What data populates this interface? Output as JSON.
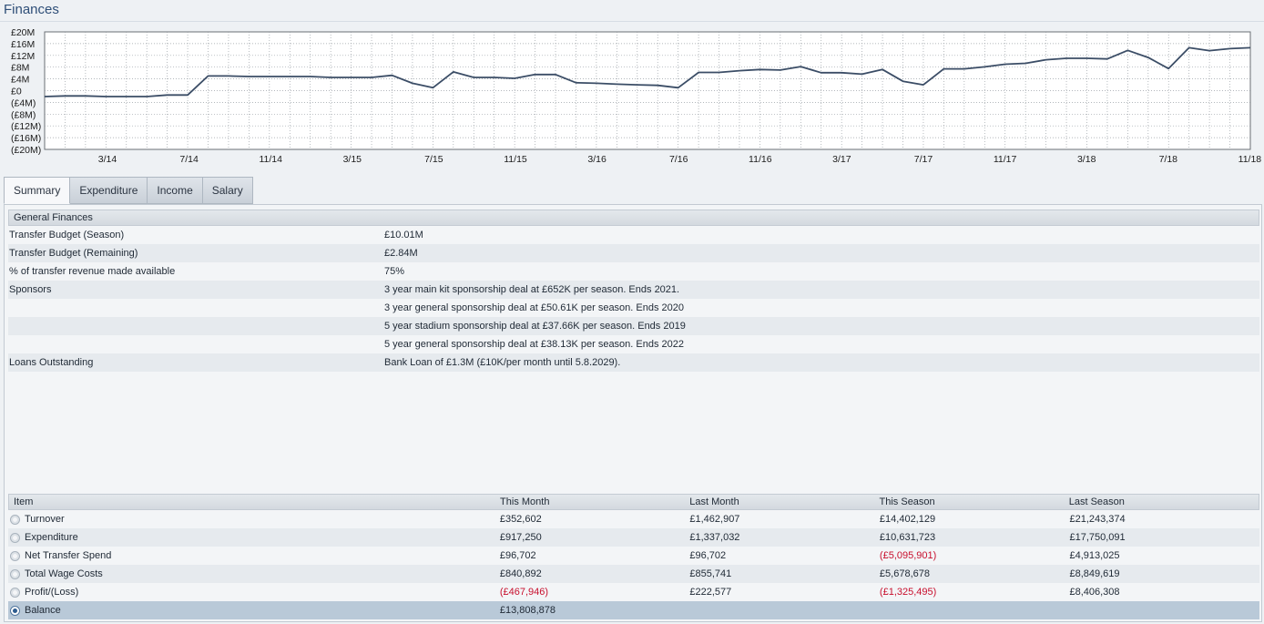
{
  "page": {
    "title": "Finances"
  },
  "chart_data": {
    "type": "line",
    "y_ticks": [
      "£20M",
      "£16M",
      "£12M",
      "£8M",
      "£4M",
      "£0",
      "(£4M)",
      "(£8M)",
      "(£12M)",
      "(£16M)",
      "(£20M)"
    ],
    "ylim": [
      -20,
      20
    ],
    "x_ticks": [
      "3/14",
      "7/14",
      "11/14",
      "3/15",
      "7/15",
      "11/15",
      "3/16",
      "7/16",
      "11/16",
      "3/17",
      "7/17",
      "11/17",
      "3/18",
      "7/18",
      "11/18"
    ],
    "grid": true,
    "series": [
      {
        "color": "#3b4d66",
        "values": [
          -2,
          -1.8,
          -1.8,
          -2,
          -2,
          -2,
          -1.5,
          -1.5,
          5,
          5,
          4.8,
          4.8,
          4.8,
          4.8,
          4.5,
          4.5,
          4.5,
          5.2,
          2.5,
          1,
          6.4,
          4.5,
          4.5,
          4.2,
          5.5,
          5.5,
          2.7,
          2.5,
          2.2,
          2,
          1.8,
          1,
          6.2,
          6.2,
          6.8,
          7.2,
          7,
          8.2,
          6.1,
          6.1,
          5.6,
          7.2,
          3.2,
          2,
          7.4,
          7.4,
          8.1,
          9,
          9.3,
          10.5,
          11,
          11,
          10.8,
          13.7,
          11.3,
          7.5,
          14.6,
          13.6,
          14.3,
          14.6
        ]
      }
    ]
  },
  "tabs": [
    {
      "label": "Summary",
      "active": true
    },
    {
      "label": "Expenditure",
      "active": false
    },
    {
      "label": "Income",
      "active": false
    },
    {
      "label": "Salary",
      "active": false
    }
  ],
  "general": {
    "header": "General Finances",
    "rows": [
      {
        "label": "Transfer Budget (Season)",
        "value": "£10.01M"
      },
      {
        "label": "Transfer Budget (Remaining)",
        "value": "£2.84M"
      },
      {
        "label": "% of transfer revenue made available",
        "value": "75%"
      },
      {
        "label": "Sponsors",
        "value": "3 year main kit sponsorship deal at £652K per season. Ends 2021."
      },
      {
        "label": "",
        "value": "3 year general sponsorship deal at £50.61K per season. Ends 2020"
      },
      {
        "label": "",
        "value": "5 year stadium sponsorship deal at £37.66K per season. Ends 2019"
      },
      {
        "label": "",
        "value": "5 year general sponsorship deal at £38.13K per season. Ends 2022"
      },
      {
        "label": "Loans Outstanding",
        "value": "Bank Loan of £1.3M (£10K/per month until 5.8.2029)."
      }
    ]
  },
  "table": {
    "headers": [
      "Item",
      "This Month",
      "Last Month",
      "This Season",
      "Last Season"
    ],
    "rows": [
      {
        "item": "Turnover",
        "this_month": "£352,602",
        "last_month": "£1,462,907",
        "this_season": "£14,402,129",
        "last_season": "£21,243,374"
      },
      {
        "item": "Expenditure",
        "this_month": "£917,250",
        "last_month": "£1,337,032",
        "this_season": "£10,631,723",
        "last_season": "£17,750,091"
      },
      {
        "item": "Net Transfer Spend",
        "this_month": "£96,702",
        "last_month": "£96,702",
        "this_season": "(£5,095,901)",
        "last_season": "£4,913,025"
      },
      {
        "item": "Total Wage Costs",
        "this_month": "£840,892",
        "last_month": "£855,741",
        "this_season": "£5,678,678",
        "last_season": "£8,849,619"
      },
      {
        "item": "Profit/(Loss)",
        "this_month": "(£467,946)",
        "last_month": "£222,577",
        "this_season": "(£1,325,495)",
        "last_season": "£8,406,308"
      },
      {
        "item": "Balance",
        "this_month": "£13,808,878",
        "last_month": "",
        "this_season": "",
        "last_season": ""
      }
    ],
    "selected_row": "Balance"
  }
}
